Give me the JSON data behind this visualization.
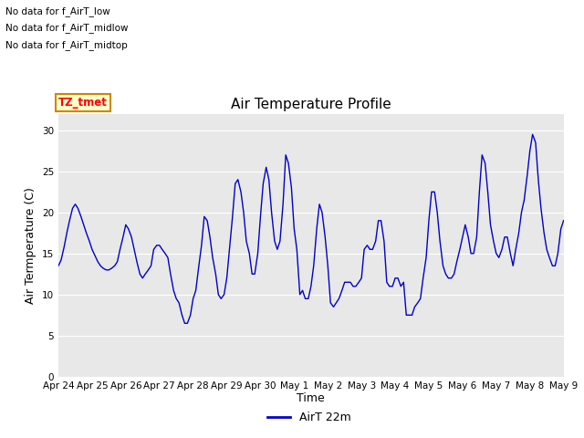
{
  "title": "Air Temperature Profile",
  "xlabel": "Time",
  "ylabel": "Air Termperature (C)",
  "legend_label": "AirT 22m",
  "no_data_texts": [
    "No data for f_AirT_low",
    "No data for f_AirT_midlow",
    "No data for f_AirT_midtop"
  ],
  "tz_label": "TZ_tmet",
  "ylim": [
    0,
    32
  ],
  "yticks": [
    0,
    5,
    10,
    15,
    20,
    25,
    30
  ],
  "line_color": "#0000cc",
  "bg_color": "#e8e8e8",
  "fig_bg": "#ffffff",
  "x_labels": [
    "Apr 24",
    "Apr 25",
    "Apr 26",
    "Apr 27",
    "Apr 28",
    "Apr 29",
    "Apr 30",
    "May 1",
    "May 2",
    "May 3",
    "May 4",
    "May 5",
    "May 6",
    "May 7",
    "May 8",
    "May 9"
  ],
  "time_data": [
    0.0,
    0.08,
    0.17,
    0.25,
    0.33,
    0.42,
    0.5,
    0.58,
    0.67,
    0.75,
    0.83,
    0.92,
    1.0,
    1.08,
    1.17,
    1.25,
    1.33,
    1.42,
    1.5,
    1.58,
    1.67,
    1.75,
    1.83,
    1.92,
    2.0,
    2.08,
    2.17,
    2.25,
    2.33,
    2.42,
    2.5,
    2.58,
    2.67,
    2.75,
    2.83,
    2.92,
    3.0,
    3.08,
    3.17,
    3.25,
    3.33,
    3.42,
    3.5,
    3.58,
    3.67,
    3.75,
    3.83,
    3.92,
    4.0,
    4.08,
    4.17,
    4.25,
    4.33,
    4.42,
    4.5,
    4.58,
    4.67,
    4.75,
    4.83,
    4.92,
    5.0,
    5.08,
    5.17,
    5.25,
    5.33,
    5.42,
    5.5,
    5.58,
    5.67,
    5.75,
    5.83,
    5.92,
    6.0,
    6.08,
    6.17,
    6.25,
    6.33,
    6.42,
    6.5,
    6.58,
    6.67,
    6.75,
    6.83,
    6.92,
    7.0,
    7.08,
    7.17,
    7.25,
    7.33,
    7.42,
    7.5,
    7.58,
    7.67,
    7.75,
    7.83,
    7.92,
    8.0,
    8.08,
    8.17,
    8.25,
    8.33,
    8.42,
    8.5,
    8.58,
    8.67,
    8.75,
    8.83,
    8.92,
    9.0,
    9.08,
    9.17,
    9.25,
    9.33,
    9.42,
    9.5,
    9.58,
    9.67,
    9.75,
    9.83,
    9.92,
    10.0,
    10.08,
    10.17,
    10.25,
    10.33,
    10.42,
    10.5,
    10.58,
    10.67,
    10.75,
    10.83,
    10.92,
    11.0,
    11.08,
    11.17,
    11.25,
    11.33,
    11.42,
    11.5,
    11.58,
    11.67,
    11.75,
    11.83,
    11.92,
    12.0,
    12.08,
    12.17,
    12.25,
    12.33,
    12.42,
    12.5,
    12.58,
    12.67,
    12.75,
    12.83,
    12.92,
    13.0,
    13.08,
    13.17,
    13.25,
    13.33,
    13.42,
    13.5,
    13.58,
    13.67,
    13.75,
    13.83,
    13.92,
    14.0,
    14.08,
    14.17,
    14.25,
    14.33,
    14.42,
    14.5,
    14.58,
    14.67,
    14.75,
    14.83,
    14.92,
    15.0
  ],
  "temp_data": [
    13.5,
    14.2,
    15.8,
    17.5,
    19.0,
    20.5,
    21.0,
    20.5,
    19.5,
    18.5,
    17.5,
    16.5,
    15.5,
    14.8,
    14.0,
    13.5,
    13.2,
    13.0,
    13.0,
    13.2,
    13.5,
    14.0,
    15.5,
    17.0,
    18.5,
    18.0,
    17.0,
    15.5,
    14.0,
    12.5,
    12.0,
    12.5,
    13.0,
    13.5,
    15.5,
    16.0,
    16.0,
    15.5,
    15.0,
    14.5,
    12.5,
    10.5,
    9.5,
    9.0,
    7.5,
    6.5,
    6.5,
    7.5,
    9.5,
    10.5,
    13.5,
    16.0,
    19.5,
    19.0,
    17.0,
    14.5,
    12.5,
    10.0,
    9.5,
    10.0,
    12.0,
    15.5,
    19.5,
    23.5,
    24.0,
    22.5,
    20.0,
    16.5,
    15.0,
    12.5,
    12.5,
    15.0,
    19.5,
    23.5,
    25.5,
    24.0,
    20.0,
    16.5,
    15.5,
    16.5,
    21.0,
    27.0,
    26.0,
    23.0,
    18.0,
    15.5,
    10.0,
    10.5,
    9.5,
    9.5,
    11.0,
    13.5,
    18.0,
    21.0,
    20.0,
    17.0,
    13.5,
    9.0,
    8.5,
    9.0,
    9.5,
    10.5,
    11.5,
    11.5,
    11.5,
    11.0,
    11.0,
    11.5,
    12.0,
    15.5,
    16.0,
    15.5,
    15.5,
    16.5,
    19.0,
    19.0,
    16.5,
    11.5,
    11.0,
    11.0,
    12.0,
    12.0,
    11.0,
    11.5,
    7.5,
    7.5,
    7.5,
    8.5,
    9.0,
    9.5,
    12.0,
    14.5,
    19.0,
    22.5,
    22.5,
    20.0,
    16.5,
    13.5,
    12.5,
    12.0,
    12.0,
    12.5,
    14.0,
    15.5,
    17.0,
    18.5,
    17.0,
    15.0,
    15.0,
    17.0,
    22.5,
    27.0,
    26.0,
    22.5,
    18.5,
    16.5,
    15.0,
    14.5,
    15.5,
    17.0,
    17.0,
    15.0,
    13.5,
    15.5,
    17.5,
    20.0,
    21.5,
    24.5,
    27.5,
    29.5,
    28.5,
    24.0,
    20.5,
    17.5,
    15.5,
    14.5,
    13.5,
    13.5,
    15.0,
    18.0,
    19.0
  ]
}
